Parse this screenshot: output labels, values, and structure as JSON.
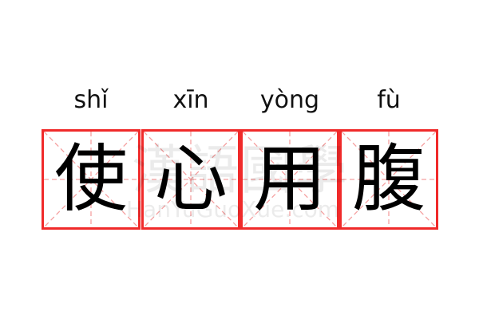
{
  "pinyin": [
    "shǐ",
    "xīn",
    "yòng",
    "fù"
  ],
  "characters": [
    "使",
    "心",
    "用",
    "腹"
  ],
  "watermark": {
    "chinese": "漢語國學",
    "latin": "HanYuGuoXue.com"
  },
  "colors": {
    "grid_border": "#f02a2a",
    "guide_lines": "#f5a0a0",
    "character": "#000000"
  }
}
